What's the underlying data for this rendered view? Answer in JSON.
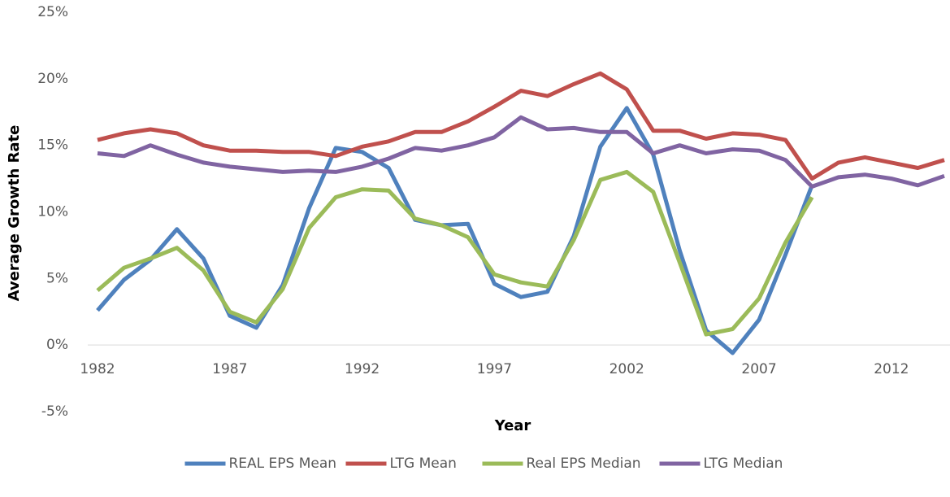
{
  "chart_data": {
    "type": "line",
    "categories": [
      1982,
      null,
      null,
      null,
      null,
      1987,
      null,
      null,
      null,
      null,
      1992,
      null,
      null,
      null,
      null,
      1997,
      null,
      null,
      null,
      null,
      2002,
      null,
      null,
      null,
      null,
      2007,
      null,
      null,
      null,
      null,
      2012,
      null,
      null
    ],
    "x_label": "Year",
    "y_label": "Average  Growth Rate",
    "ylim": [
      -5,
      25
    ],
    "yticks": [
      {
        "value": -5,
        "label": "-5%"
      },
      {
        "value": 0,
        "label": "0%"
      },
      {
        "value": 5,
        "label": "5%"
      },
      {
        "value": 10,
        "label": "10%"
      },
      {
        "value": 15,
        "label": "15%"
      },
      {
        "value": 20,
        "label": "20%"
      },
      {
        "value": 25,
        "label": "25%"
      }
    ],
    "grid": false,
    "legend": "bottom",
    "series": [
      {
        "name": "REAL EPS Mean",
        "color": "#4f81bd",
        "values": [
          2.6,
          4.9,
          6.4,
          8.7,
          6.5,
          2.2,
          1.3,
          4.5,
          10.3,
          14.8,
          14.5,
          13.3,
          9.4,
          9.0,
          9.1,
          4.6,
          3.6,
          4.0,
          8.2,
          14.9,
          17.8,
          14.3,
          7.1,
          1.1,
          -0.6,
          1.9,
          6.8,
          12.0,
          null,
          null,
          null,
          null,
          null
        ]
      },
      {
        "name": "LTG Mean",
        "color": "#c0504d",
        "values": [
          15.4,
          15.9,
          16.2,
          15.9,
          15.0,
          14.6,
          14.6,
          14.5,
          14.5,
          14.2,
          14.9,
          15.3,
          16.0,
          16.0,
          16.8,
          17.9,
          19.1,
          18.7,
          19.6,
          20.4,
          19.2,
          16.1,
          16.1,
          15.5,
          15.9,
          15.8,
          15.4,
          12.5,
          13.7,
          14.1,
          13.7,
          13.3,
          13.9
        ]
      },
      {
        "name": "Real EPS Median",
        "color": "#9bbb59",
        "values": [
          4.1,
          5.8,
          6.5,
          7.3,
          5.6,
          2.5,
          1.7,
          4.2,
          8.8,
          11.1,
          11.7,
          11.6,
          9.5,
          9.0,
          8.1,
          5.3,
          4.7,
          4.4,
          7.9,
          12.4,
          13.0,
          11.5,
          6.2,
          0.8,
          1.2,
          3.5,
          7.7,
          11.1,
          null,
          null,
          null,
          null,
          null
        ]
      },
      {
        "name": "LTG Median",
        "color": "#8064a2",
        "values": [
          14.4,
          14.2,
          15.0,
          14.3,
          13.7,
          13.4,
          13.2,
          13.0,
          13.1,
          13.0,
          13.4,
          14.0,
          14.8,
          14.6,
          15.0,
          15.6,
          17.1,
          16.2,
          16.3,
          16.0,
          16.0,
          14.4,
          15.0,
          14.4,
          14.7,
          14.6,
          13.9,
          11.9,
          12.6,
          12.8,
          12.5,
          12.0,
          12.7
        ]
      }
    ]
  }
}
